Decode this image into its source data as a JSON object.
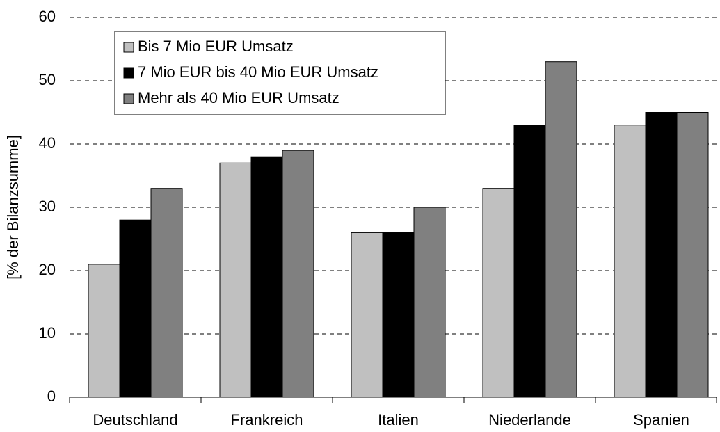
{
  "chart_data": {
    "type": "bar",
    "y_label": "[% der Bilanzsumme]",
    "categories": [
      "Deutschland",
      "Frankreich",
      "Italien",
      "Niederlande",
      "Spanien"
    ],
    "series": [
      {
        "name": "Bis 7 Mio EUR Umsatz",
        "color": "#c0c0c0",
        "values": [
          21,
          37,
          26,
          33,
          43
        ]
      },
      {
        "name": "7 Mio EUR bis 40 Mio EUR Umsatz",
        "color": "#000000",
        "values": [
          28,
          38,
          26,
          43,
          45
        ]
      },
      {
        "name": "Mehr als 40 Mio EUR Umsatz",
        "color": "#808080",
        "values": [
          33,
          39,
          30,
          53,
          45
        ]
      }
    ],
    "ylim": [
      0,
      60
    ],
    "yticks": [
      0,
      10,
      20,
      30,
      40,
      50,
      60
    ],
    "grid": true,
    "legend": "upper left"
  }
}
